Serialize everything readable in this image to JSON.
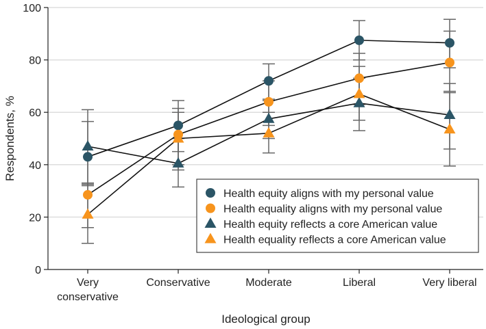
{
  "chart_data": {
    "type": "line",
    "xlabel": "Ideological group",
    "ylabel": "Respondents, %",
    "ylim": [
      0,
      100
    ],
    "yticks": [
      0,
      20,
      40,
      60,
      80,
      100
    ],
    "categories": [
      "Very conservative",
      "Conservative",
      "Moderate",
      "Liberal",
      "Very liberal"
    ],
    "category_lines": [
      [
        "Very",
        "conservative"
      ],
      [
        "Conservative"
      ],
      [
        "Moderate"
      ],
      [
        "Liberal"
      ],
      [
        "Very liberal"
      ]
    ],
    "grid": "horizontal",
    "legend": "bottom-right",
    "series": [
      {
        "name": "Health equity aligns with my personal value",
        "marker": "circle",
        "color": "#2b5566",
        "values": [
          43,
          55,
          72,
          87.5,
          86.5
        ],
        "ci_low": [
          32,
          45,
          64.5,
          80,
          77
        ],
        "ci_high": [
          56.5,
          64.5,
          78.5,
          95,
          95.5
        ]
      },
      {
        "name": "Health equality aligns with my personal value",
        "marker": "circle",
        "color": "#f7941d",
        "values": [
          28.5,
          51.5,
          64,
          73,
          79
        ],
        "ci_low": [
          16,
          38,
          55,
          63,
          68
        ],
        "ci_high": [
          33,
          61.5,
          72,
          82.5,
          91
        ]
      },
      {
        "name": "Health equity reflects a core American value",
        "marker": "triangle",
        "color": "#2b5566",
        "values": [
          47,
          40.5,
          57.5,
          63.5,
          59
        ],
        "ci_low": [
          33,
          31.5,
          50,
          53,
          46
        ],
        "ci_high": [
          61,
          50,
          65,
          73,
          71
        ]
      },
      {
        "name": "Health equality reflects a core American value",
        "marker": "triangle",
        "color": "#f7941d",
        "values": [
          21,
          50,
          52,
          67,
          53.5
        ],
        "ci_low": [
          10,
          40,
          44.5,
          57,
          39.5
        ],
        "ci_high": [
          32.5,
          60,
          60,
          77.5,
          67.5
        ]
      }
    ]
  }
}
